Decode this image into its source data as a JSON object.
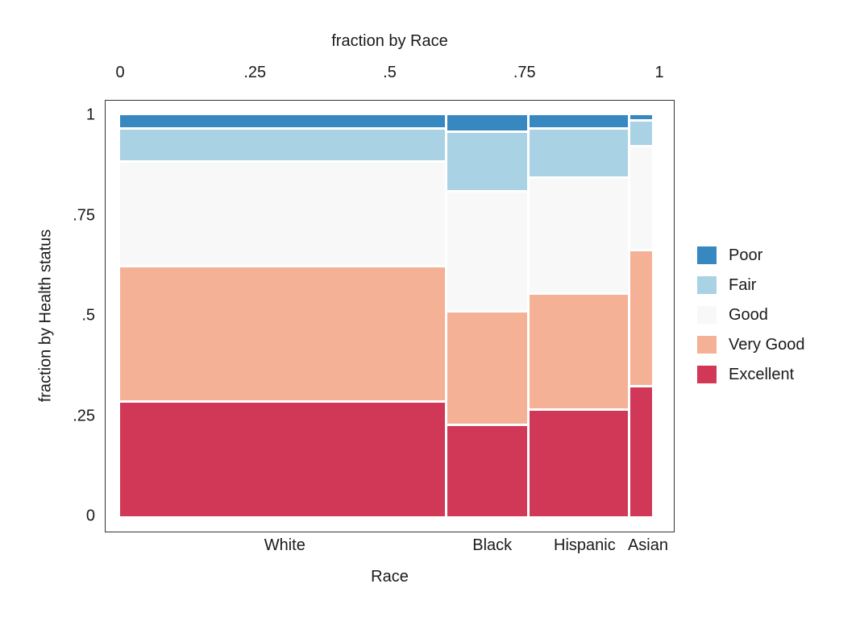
{
  "chart_data": {
    "type": "mosaic",
    "top_axis_title": "fraction by Race",
    "xlabel": "Race",
    "ylabel": "fraction by Health status",
    "x_ticks": [
      "0",
      ".25",
      ".5",
      ".75",
      "1"
    ],
    "y_ticks": [
      "1",
      ".75",
      ".5",
      ".25",
      "0"
    ],
    "xlim": [
      0,
      1
    ],
    "ylim": [
      0,
      1
    ],
    "grid": false,
    "legend_position": "right-outside",
    "categories": [
      "White",
      "Black",
      "Hispanic",
      "Asian"
    ],
    "category_width_fractions": [
      0.611,
      0.15,
      0.184,
      0.042
    ],
    "stack_order_top_to_bottom": [
      "Poor",
      "Fair",
      "Good",
      "Very Good",
      "Excellent"
    ],
    "series": [
      {
        "name": "Poor",
        "color": "#3787c0",
        "values": [
          0.03,
          0.04,
          0.03,
          0.01
        ]
      },
      {
        "name": "Fair",
        "color": "#a9d2e5",
        "values": [
          0.08,
          0.145,
          0.12,
          0.06
        ]
      },
      {
        "name": "Good",
        "color": "#f8f8f8",
        "values": [
          0.26,
          0.3,
          0.29,
          0.26
        ]
      },
      {
        "name": "Very Good",
        "color": "#f5b195",
        "values": [
          0.34,
          0.285,
          0.29,
          0.34
        ]
      },
      {
        "name": "Excellent",
        "color": "#d13756",
        "values": [
          0.29,
          0.23,
          0.27,
          0.33
        ]
      }
    ],
    "colors": {
      "frame_border": "#333333",
      "text": "#1a1a1a",
      "background": "#ffffff",
      "segment_gap": "#ffffff"
    }
  }
}
